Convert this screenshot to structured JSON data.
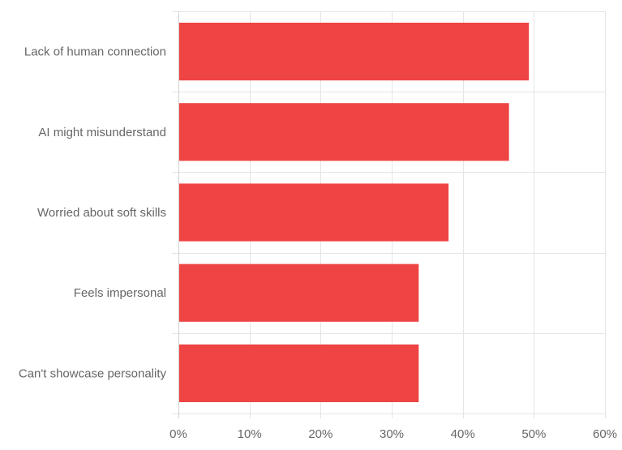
{
  "chart_data": {
    "type": "bar",
    "orientation": "horizontal",
    "categories": [
      "Lack of human connection",
      "AI might misunderstand",
      "Worried about soft skills",
      "Feels impersonal",
      "Can't showcase personality"
    ],
    "values": [
      49.3,
      46.5,
      38.0,
      33.8,
      33.8
    ],
    "unit": "%",
    "xlim": [
      0,
      60
    ],
    "x_ticks": [
      0,
      10,
      20,
      30,
      40,
      50,
      60
    ],
    "x_tick_labels": [
      "0%",
      "10%",
      "20%",
      "30%",
      "40%",
      "50%",
      "60%"
    ],
    "title": "",
    "xlabel": "",
    "ylabel": "",
    "grid": true,
    "legend": "none",
    "colors": {
      "bar": "#ef4444",
      "grid": "#e5e5e5",
      "axis": "#d0d0d0",
      "text": "#666666"
    }
  }
}
